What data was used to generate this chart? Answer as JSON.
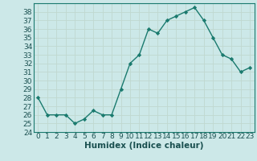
{
  "x": [
    0,
    1,
    2,
    3,
    4,
    5,
    6,
    7,
    8,
    9,
    10,
    11,
    12,
    13,
    14,
    15,
    16,
    17,
    18,
    19,
    20,
    21,
    22,
    23
  ],
  "y": [
    28,
    26,
    26,
    26,
    25,
    25.5,
    26.5,
    26,
    26,
    29,
    32,
    33,
    36,
    35.5,
    37,
    37.5,
    38,
    38.5,
    37,
    35,
    33,
    32.5,
    31,
    31.5
  ],
  "xlabel": "Humidex (Indice chaleur)",
  "ylim": [
    24,
    39
  ],
  "xlim": [
    -0.5,
    23.5
  ],
  "yticks": [
    24,
    25,
    26,
    27,
    28,
    29,
    30,
    31,
    32,
    33,
    34,
    35,
    36,
    37,
    38
  ],
  "xticks": [
    0,
    1,
    2,
    3,
    4,
    5,
    6,
    7,
    8,
    9,
    10,
    11,
    12,
    13,
    14,
    15,
    16,
    17,
    18,
    19,
    20,
    21,
    22,
    23
  ],
  "line_color": "#1a7a6e",
  "marker": "D",
  "marker_size": 2.2,
  "bg_color": "#cce8e8",
  "grid_color": "#b0d0d0",
  "tick_label_fontsize": 6.5,
  "xlabel_fontsize": 7.5,
  "tick_color": "#1a5050"
}
